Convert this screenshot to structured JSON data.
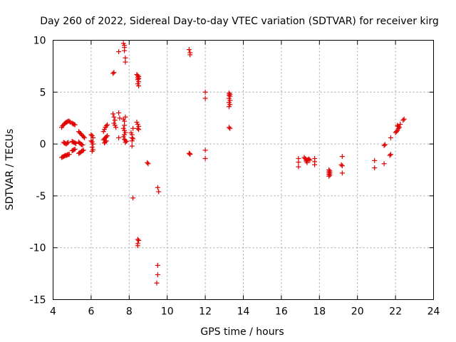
{
  "chart_data": {
    "type": "scatter",
    "title": "Day 260 of 2022, Sidereal Day-to-day VTEC variation (SDTVAR) for receiver kirg",
    "xlabel": "GPS time / hours",
    "ylabel": "SDTVAR / TECUs",
    "xlim": [
      4,
      24
    ],
    "ylim": [
      -15,
      10
    ],
    "xticks": [
      4,
      6,
      8,
      10,
      12,
      14,
      16,
      18,
      20,
      22,
      24
    ],
    "yticks": [
      -15,
      -10,
      -5,
      0,
      5,
      10
    ],
    "xtick_labels": [
      "4",
      "6",
      "8",
      "10",
      "12",
      "14",
      "16",
      "18",
      "20",
      "22",
      "24"
    ],
    "ytick_labels": [
      "-15",
      "-10",
      "-5",
      "0",
      "5",
      "10"
    ],
    "grid": true,
    "marker": "plus",
    "color": "#e00000",
    "series": [
      {
        "name": "SDTVAR",
        "points": [
          [
            4.45,
            1.6
          ],
          [
            4.5,
            1.75
          ],
          [
            4.55,
            1.85
          ],
          [
            4.6,
            1.95
          ],
          [
            4.65,
            2.05
          ],
          [
            4.7,
            2.1
          ],
          [
            4.75,
            2.15
          ],
          [
            4.8,
            2.2
          ],
          [
            4.85,
            2.2
          ],
          [
            4.45,
            -1.3
          ],
          [
            4.5,
            -1.25
          ],
          [
            4.55,
            -1.2
          ],
          [
            4.6,
            -1.15
          ],
          [
            4.65,
            -1.1
          ],
          [
            4.7,
            -1.1
          ],
          [
            4.75,
            -1.05
          ],
          [
            4.8,
            -1.0
          ],
          [
            4.85,
            -1.0
          ],
          [
            4.55,
            0.15
          ],
          [
            4.6,
            0.1
          ],
          [
            4.65,
            0.05
          ],
          [
            4.7,
            0.0
          ],
          [
            4.75,
            0.1
          ],
          [
            4.8,
            0.15
          ],
          [
            4.9,
            2.1
          ],
          [
            5.0,
            2.0
          ],
          [
            5.05,
            1.95
          ],
          [
            5.1,
            1.9
          ],
          [
            5.15,
            1.85
          ],
          [
            5.0,
            0.25
          ],
          [
            5.05,
            0.2
          ],
          [
            5.1,
            0.15
          ],
          [
            5.15,
            0.1
          ],
          [
            5.2,
            0.05
          ],
          [
            5.0,
            -0.65
          ],
          [
            5.05,
            -0.6
          ],
          [
            5.1,
            -0.55
          ],
          [
            5.15,
            -0.5
          ],
          [
            5.35,
            1.2
          ],
          [
            5.4,
            1.1
          ],
          [
            5.45,
            1.0
          ],
          [
            5.5,
            0.9
          ],
          [
            5.55,
            0.8
          ],
          [
            5.6,
            0.7
          ],
          [
            5.65,
            0.6
          ],
          [
            5.35,
            0.2
          ],
          [
            5.4,
            0.1
          ],
          [
            5.45,
            0.0
          ],
          [
            5.5,
            -0.05
          ],
          [
            5.55,
            -0.1
          ],
          [
            5.35,
            -0.9
          ],
          [
            5.4,
            -0.85
          ],
          [
            5.45,
            -0.8
          ],
          [
            5.5,
            -0.7
          ],
          [
            5.55,
            -0.65
          ],
          [
            5.6,
            -0.6
          ],
          [
            6.0,
            0.9
          ],
          [
            6.05,
            0.8
          ],
          [
            6.1,
            0.6
          ],
          [
            6.0,
            0.3
          ],
          [
            6.05,
            0.2
          ],
          [
            6.1,
            0.0
          ],
          [
            6.05,
            -0.3
          ],
          [
            6.1,
            -0.55
          ],
          [
            6.05,
            -0.7
          ],
          [
            6.65,
            1.2
          ],
          [
            6.7,
            1.4
          ],
          [
            6.75,
            1.6
          ],
          [
            6.8,
            1.75
          ],
          [
            6.85,
            1.85
          ],
          [
            6.65,
            0.4
          ],
          [
            6.7,
            0.5
          ],
          [
            6.75,
            0.6
          ],
          [
            6.8,
            0.7
          ],
          [
            6.85,
            0.8
          ],
          [
            6.7,
            0.1
          ],
          [
            6.75,
            0.2
          ],
          [
            6.8,
            0.3
          ],
          [
            7.15,
            6.8
          ],
          [
            7.2,
            6.9
          ],
          [
            7.15,
            2.9
          ],
          [
            7.2,
            2.6
          ],
          [
            7.25,
            2.3
          ],
          [
            7.2,
            2.0
          ],
          [
            7.25,
            1.8
          ],
          [
            7.3,
            1.6
          ],
          [
            7.45,
            8.9
          ],
          [
            7.45,
            3.0
          ],
          [
            7.5,
            2.5
          ],
          [
            7.45,
            0.6
          ],
          [
            7.7,
            9.7
          ],
          [
            7.75,
            9.5
          ],
          [
            7.75,
            9.3
          ],
          [
            7.75,
            9.0
          ],
          [
            7.8,
            8.3
          ],
          [
            7.8,
            7.9
          ],
          [
            7.7,
            2.4
          ],
          [
            7.75,
            2.2
          ],
          [
            7.8,
            2.6
          ],
          [
            7.75,
            1.8
          ],
          [
            7.7,
            1.5
          ],
          [
            7.75,
            1.3
          ],
          [
            7.8,
            1.1
          ],
          [
            7.75,
            0.9
          ],
          [
            7.7,
            0.7
          ],
          [
            7.75,
            0.45
          ],
          [
            7.8,
            0.35
          ],
          [
            7.85,
            0.25
          ],
          [
            7.8,
            0.15
          ],
          [
            8.1,
            1.1
          ],
          [
            8.15,
            0.9
          ],
          [
            8.15,
            0.6
          ],
          [
            8.2,
            0.5
          ],
          [
            8.15,
            0.3
          ],
          [
            8.2,
            1.5
          ],
          [
            8.15,
            -0.2
          ],
          [
            8.2,
            -5.2
          ],
          [
            8.4,
            6.7
          ],
          [
            8.45,
            6.6
          ],
          [
            8.5,
            6.5
          ],
          [
            8.45,
            6.4
          ],
          [
            8.5,
            6.3
          ],
          [
            8.45,
            6.2
          ],
          [
            8.5,
            6.0
          ],
          [
            8.45,
            5.8
          ],
          [
            8.5,
            5.6
          ],
          [
            8.4,
            2.1
          ],
          [
            8.45,
            1.9
          ],
          [
            8.5,
            1.7
          ],
          [
            8.45,
            1.5
          ],
          [
            8.5,
            1.4
          ],
          [
            8.45,
            -9.2
          ],
          [
            8.5,
            -9.3
          ],
          [
            8.45,
            -9.6
          ],
          [
            8.45,
            -9.8
          ],
          [
            8.95,
            -1.8
          ],
          [
            9.0,
            -1.9
          ],
          [
            9.5,
            -4.2
          ],
          [
            9.55,
            -4.6
          ],
          [
            9.5,
            -11.7
          ],
          [
            9.5,
            -12.6
          ],
          [
            9.45,
            -13.4
          ],
          [
            11.15,
            9.1
          ],
          [
            11.2,
            8.8
          ],
          [
            11.2,
            8.6
          ],
          [
            11.15,
            -0.9
          ],
          [
            11.2,
            -0.95
          ],
          [
            11.2,
            -1.0
          ],
          [
            12.0,
            5.0
          ],
          [
            12.0,
            4.4
          ],
          [
            12.0,
            -0.6
          ],
          [
            12.0,
            -1.4
          ],
          [
            13.25,
            4.9
          ],
          [
            13.3,
            4.8
          ],
          [
            13.25,
            4.7
          ],
          [
            13.3,
            4.6
          ],
          [
            13.25,
            4.4
          ],
          [
            13.3,
            4.2
          ],
          [
            13.25,
            4.0
          ],
          [
            13.3,
            3.8
          ],
          [
            13.25,
            3.6
          ],
          [
            13.25,
            1.6
          ],
          [
            13.3,
            1.5
          ],
          [
            16.9,
            -1.4
          ],
          [
            16.9,
            -1.75
          ],
          [
            16.9,
            -2.2
          ],
          [
            17.2,
            -1.3
          ],
          [
            17.25,
            -1.4
          ],
          [
            17.3,
            -1.5
          ],
          [
            17.35,
            -1.55
          ],
          [
            17.4,
            -1.5
          ],
          [
            17.45,
            -1.45
          ],
          [
            17.5,
            -1.55
          ],
          [
            17.3,
            -1.65
          ],
          [
            17.35,
            -1.8
          ],
          [
            17.75,
            -1.4
          ],
          [
            17.75,
            -1.7
          ],
          [
            17.75,
            -2.0
          ],
          [
            18.5,
            -2.5
          ],
          [
            18.55,
            -2.6
          ],
          [
            18.5,
            -2.7
          ],
          [
            18.55,
            -2.8
          ],
          [
            18.5,
            -2.9
          ],
          [
            18.55,
            -3.0
          ],
          [
            18.5,
            -3.1
          ],
          [
            19.2,
            -1.2
          ],
          [
            19.15,
            -2.0
          ],
          [
            19.2,
            -2.1
          ],
          [
            19.2,
            -2.8
          ],
          [
            20.9,
            -1.6
          ],
          [
            20.9,
            -2.3
          ],
          [
            21.4,
            -0.15
          ],
          [
            21.45,
            -0.05
          ],
          [
            21.4,
            -1.9
          ],
          [
            21.75,
            0.6
          ],
          [
            21.75,
            -1.0
          ],
          [
            21.7,
            -1.1
          ],
          [
            22.0,
            1.1
          ],
          [
            22.05,
            1.2
          ],
          [
            22.1,
            1.3
          ],
          [
            22.15,
            1.5
          ],
          [
            22.2,
            1.6
          ],
          [
            22.15,
            1.7
          ],
          [
            22.1,
            1.8
          ],
          [
            22.25,
            1.9
          ],
          [
            22.4,
            2.3
          ],
          [
            22.45,
            2.4
          ]
        ]
      }
    ]
  }
}
